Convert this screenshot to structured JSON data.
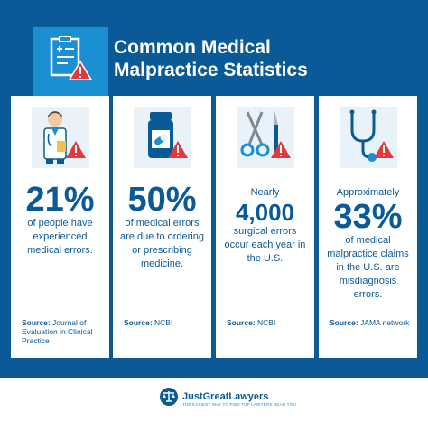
{
  "header": {
    "title_line1": "Common Medical",
    "title_line2": "Malpractice Statistics",
    "icon": "medical-report-warning-icon"
  },
  "cards": [
    {
      "icon": "doctor-warning-icon",
      "big": "21%",
      "desc": "of people have experienced medical errors.",
      "source_label": "Source:",
      "source_text": "Journal of Evaluation in Clinical Practice"
    },
    {
      "icon": "pill-bottle-warning-icon",
      "big": "50%",
      "desc": "of medical errors are due to ordering or prescribing medicine.",
      "source_label": "Source:",
      "source_text": "NCBI"
    },
    {
      "icon": "scissors-scalpel-warning-icon",
      "pre": "Nearly",
      "mid": "4,000",
      "desc": "surgical errors occur each year in the U.S.",
      "source_label": "Source:",
      "source_text": "NCBI"
    },
    {
      "icon": "stethoscope-warning-icon",
      "pre": "Approximately",
      "big": "33%",
      "desc": "of medical malpractice claims in the U.S. are misdiagnosis errors.",
      "source_label": "Source:",
      "source_text": "JAMA network"
    }
  ],
  "footer": {
    "brand": "JustGreatLawyers",
    "tagline": "THE EASIEST WAY TO FIND TOP LAWYERS NEAR YOU"
  },
  "colors": {
    "background": "#0b5a98",
    "accent": "#1b8fd2",
    "warning": "#e0393e"
  }
}
